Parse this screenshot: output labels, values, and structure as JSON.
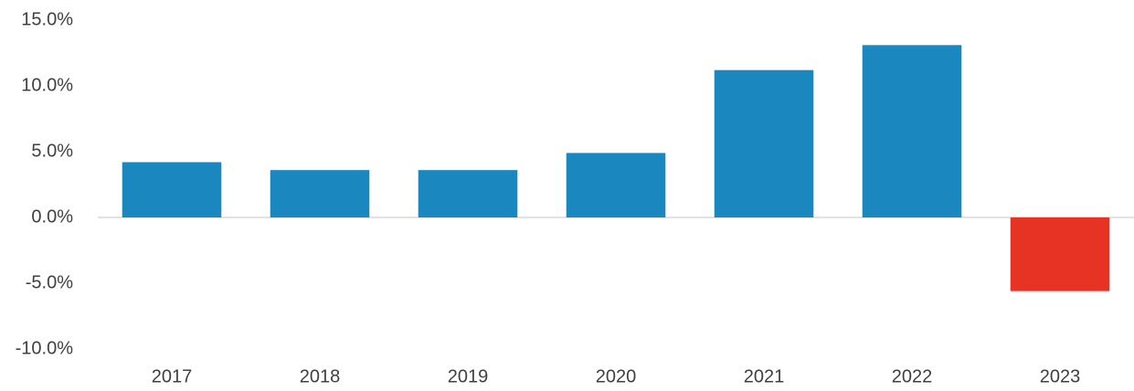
{
  "chart_data": {
    "type": "bar",
    "categories": [
      "2017",
      "2018",
      "2019",
      "2020",
      "2021",
      "2022",
      "2023"
    ],
    "values": [
      4.2,
      3.6,
      3.6,
      4.9,
      11.2,
      13.1,
      -5.6
    ],
    "colors": [
      "#1a87be",
      "#1a87be",
      "#1a87be",
      "#1a87be",
      "#1a87be",
      "#1a87be",
      "#e63323"
    ],
    "ylim": [
      -10,
      15
    ],
    "yticks": [
      {
        "value": -10,
        "label": "-10.0%"
      },
      {
        "value": -5,
        "label": "-5.0%"
      },
      {
        "value": 0,
        "label": "0.0%"
      },
      {
        "value": 5,
        "label": "5.0%"
      },
      {
        "value": 10,
        "label": "10.0%"
      },
      {
        "value": 15,
        "label": "15.0%"
      }
    ],
    "grid": false
  }
}
